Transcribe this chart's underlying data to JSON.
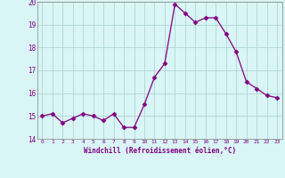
{
  "x": [
    0,
    1,
    2,
    3,
    4,
    5,
    6,
    7,
    8,
    9,
    10,
    11,
    12,
    13,
    14,
    15,
    16,
    17,
    18,
    19,
    20,
    21,
    22,
    23
  ],
  "y": [
    15.0,
    15.1,
    14.7,
    14.9,
    15.1,
    15.0,
    14.8,
    15.1,
    14.5,
    14.5,
    15.5,
    16.7,
    17.3,
    19.9,
    19.5,
    19.1,
    19.3,
    19.3,
    18.6,
    17.8,
    16.5,
    16.2,
    15.9,
    15.8
  ],
  "line_color": "#800080",
  "marker": "D",
  "marker_size": 2.5,
  "bg_color": "#d9f5f5",
  "grid_color": "#aacfcf",
  "tick_color": "#800080",
  "label_color": "#800080",
  "xlabel": "Windchill (Refroidissement éolien,°C)",
  "ylim": [
    14,
    20
  ],
  "xlim": [
    -0.5,
    23.5
  ],
  "yticks": [
    14,
    15,
    16,
    17,
    18,
    19,
    20
  ],
  "xticks": [
    0,
    1,
    2,
    3,
    4,
    5,
    6,
    7,
    8,
    9,
    10,
    11,
    12,
    13,
    14,
    15,
    16,
    17,
    18,
    19,
    20,
    21,
    22,
    23
  ]
}
